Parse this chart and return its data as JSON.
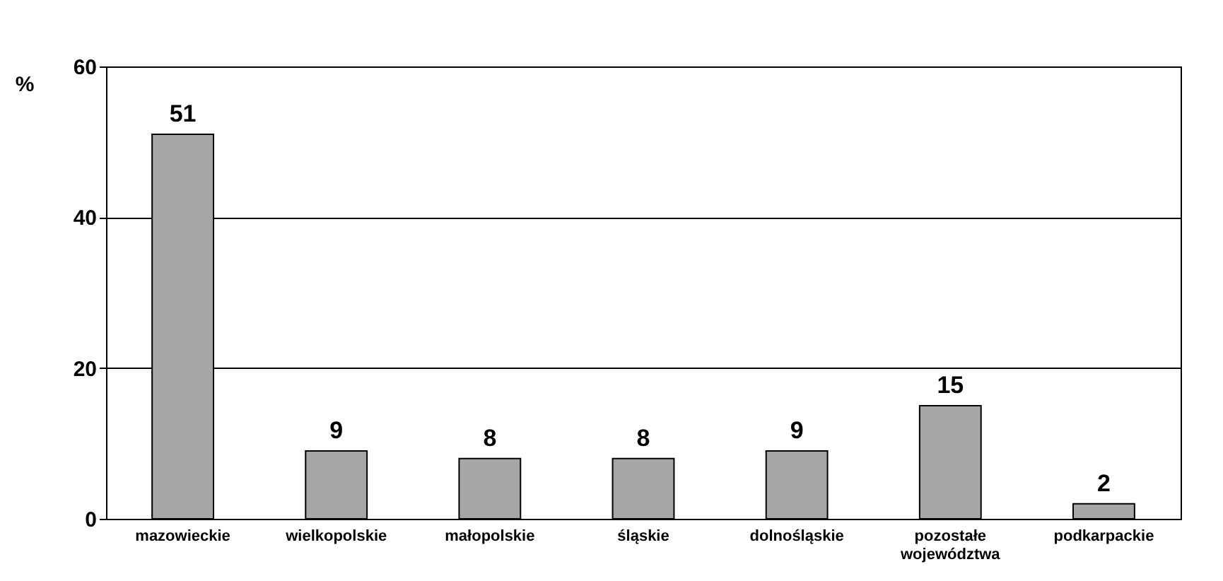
{
  "chart_data": {
    "type": "bar",
    "ylabel": "%",
    "categories": [
      "mazowieckie",
      "wielkopolskie",
      "małopolskie",
      "śląskie",
      "dolnośląskie",
      "pozostałe województwa",
      "podkarpackie"
    ],
    "values": [
      51,
      9,
      8,
      8,
      9,
      15,
      2
    ],
    "color": "#a6a6a6",
    "ylim": [
      0,
      60
    ],
    "yticks": [
      0,
      20,
      40,
      60
    ],
    "grid": "y",
    "data_labels": true
  }
}
